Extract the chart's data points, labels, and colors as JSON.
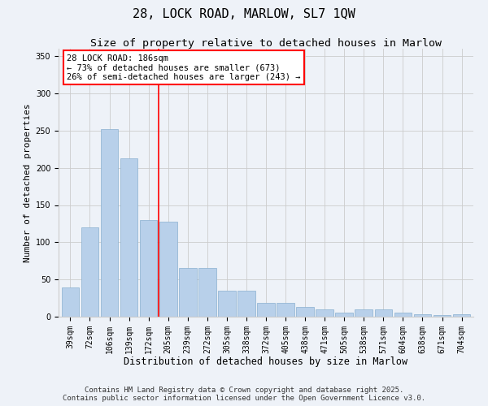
{
  "title": "28, LOCK ROAD, MARLOW, SL7 1QW",
  "subtitle": "Size of property relative to detached houses in Marlow",
  "xlabel": "Distribution of detached houses by size in Marlow",
  "ylabel": "Number of detached properties",
  "categories": [
    "39sqm",
    "72sqm",
    "106sqm",
    "139sqm",
    "172sqm",
    "205sqm",
    "239sqm",
    "272sqm",
    "305sqm",
    "338sqm",
    "372sqm",
    "405sqm",
    "438sqm",
    "471sqm",
    "505sqm",
    "538sqm",
    "571sqm",
    "604sqm",
    "638sqm",
    "671sqm",
    "704sqm"
  ],
  "values": [
    39,
    120,
    252,
    213,
    130,
    128,
    65,
    65,
    35,
    35,
    19,
    19,
    13,
    10,
    5,
    10,
    10,
    5,
    3,
    2,
    3
  ],
  "bar_color": "#b8d0ea",
  "bar_edge_color": "#8ab0d0",
  "vline_x": 4.5,
  "vline_color": "red",
  "annotation_text": "28 LOCK ROAD: 186sqm\n← 73% of detached houses are smaller (673)\n26% of semi-detached houses are larger (243) →",
  "annotation_box_color": "white",
  "annotation_box_edgecolor": "red",
  "annotation_fontsize": 7.5,
  "ylim": [
    0,
    360
  ],
  "yticks": [
    0,
    50,
    100,
    150,
    200,
    250,
    300,
    350
  ],
  "grid_color": "#cccccc",
  "background_color": "#eef2f8",
  "footer_text": "Contains HM Land Registry data © Crown copyright and database right 2025.\nContains public sector information licensed under the Open Government Licence v3.0.",
  "title_fontsize": 11,
  "subtitle_fontsize": 9.5,
  "xlabel_fontsize": 8.5,
  "ylabel_fontsize": 8,
  "tick_fontsize": 7,
  "footer_fontsize": 6.5
}
